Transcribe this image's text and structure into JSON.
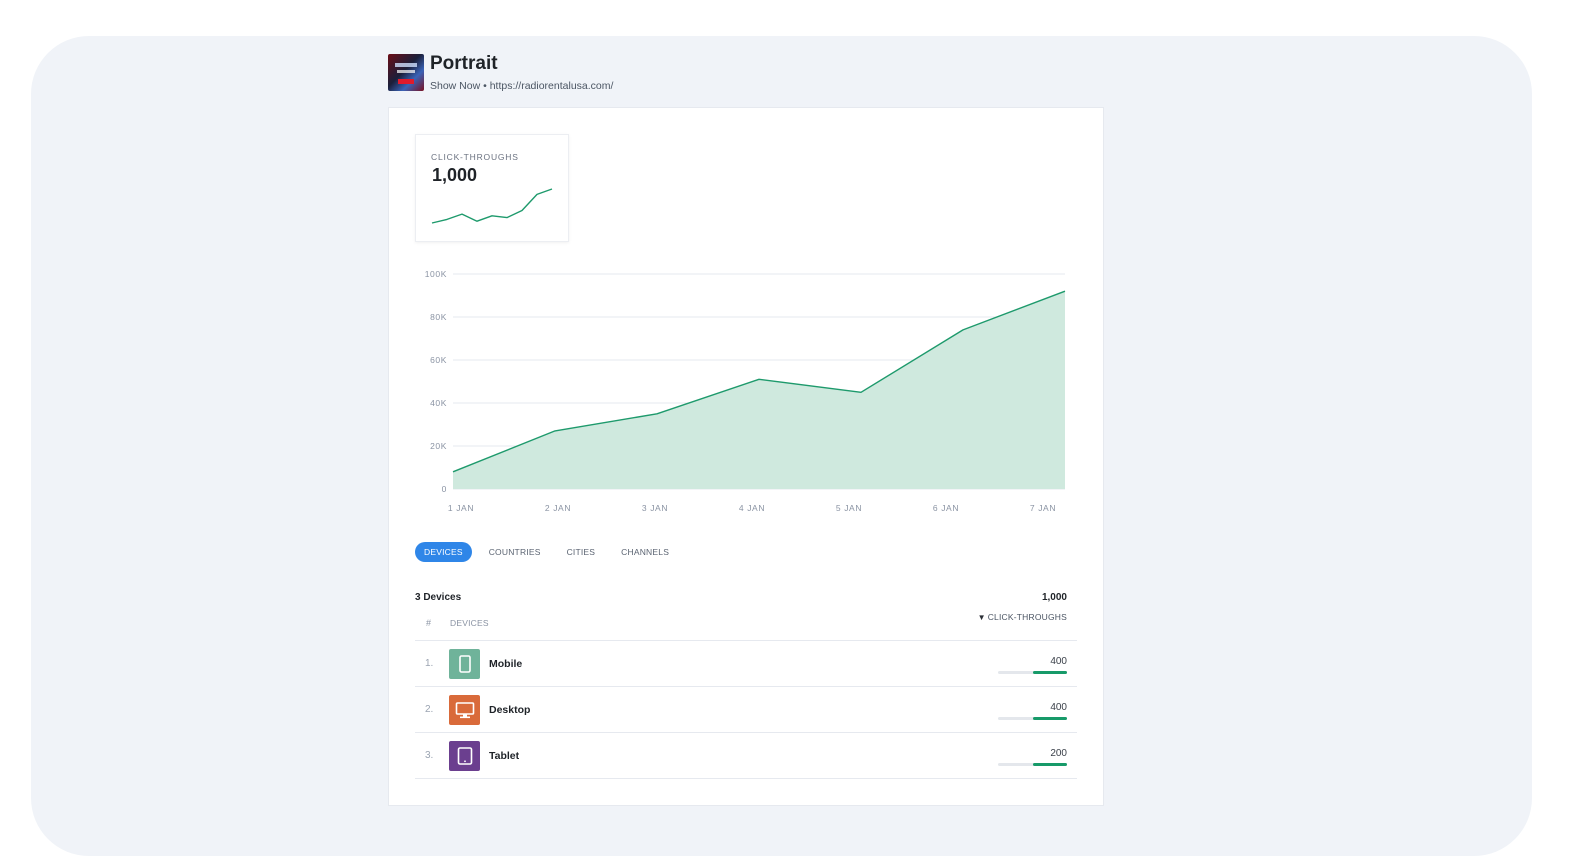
{
  "header": {
    "title": "Portrait",
    "subtitle": "Show Now • https://radiorentalusa.com/"
  },
  "kpi": {
    "label": "CLICK-THROUGHS",
    "value": "1,000",
    "sparkline": [
      2,
      4,
      7,
      3,
      6,
      5,
      9,
      18,
      21
    ]
  },
  "chart_data": {
    "type": "area",
    "x": [
      "1 JAN",
      "2 JAN",
      "3 JAN",
      "4 JAN",
      "5 JAN",
      "6 JAN",
      "7 JAN"
    ],
    "series": [
      {
        "values": [
          8000,
          27000,
          35000,
          51000,
          45000,
          74000,
          92000
        ]
      }
    ],
    "yticks": [
      "0",
      "20K",
      "40K",
      "60K",
      "80K",
      "100K"
    ],
    "ylim": [
      0,
      100000
    ],
    "grid": true,
    "colors": {
      "line": "#1e9a6c",
      "fill": "#cfe9de"
    }
  },
  "tabs": [
    {
      "label": "DEVICES",
      "active": true
    },
    {
      "label": "COUNTRIES",
      "active": false
    },
    {
      "label": "CITIES",
      "active": false
    },
    {
      "label": "CHANNELS",
      "active": false
    }
  ],
  "table": {
    "summary_left": "3 Devices",
    "summary_right": "1,000",
    "col_hash": "#",
    "col_devices": "DEVICES",
    "col_metric": "CLICK-THROUGHS",
    "rows": [
      {
        "num": "1.",
        "label": "Mobile",
        "value": "400",
        "icon": "mobile-icon",
        "color": "#6fb39a",
        "fraction": 0.5
      },
      {
        "num": "2.",
        "label": "Desktop",
        "value": "400",
        "icon": "desktop-icon",
        "color": "#d96a3a",
        "fraction": 0.5
      },
      {
        "num": "3.",
        "label": "Tablet",
        "value": "200",
        "icon": "tablet-icon",
        "color": "#6b3f8f",
        "fraction": 0.5
      }
    ]
  }
}
